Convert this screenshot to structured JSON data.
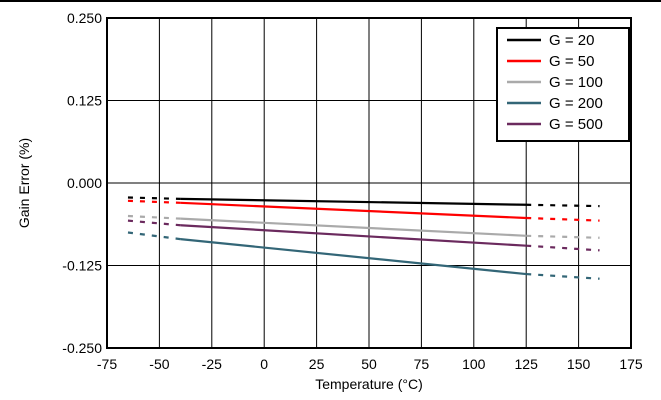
{
  "chart_data": {
    "type": "line",
    "title": "",
    "xlabel": "Temperature (°C)",
    "ylabel": "Gain Error (%)",
    "xlim": [
      -75,
      175
    ],
    "ylim": [
      -0.25,
      0.25
    ],
    "x_ticks": [
      "-75",
      "-50",
      "-25",
      "0",
      "25",
      "50",
      "75",
      "100",
      "125",
      "150",
      "175"
    ],
    "y_ticks": [
      "0.250",
      "0.125",
      "0.000",
      "-0.125",
      "-0.250"
    ],
    "grid": true,
    "legend_position": "top-right",
    "solid_range": [
      -40,
      125
    ],
    "dotted_ranges": [
      [
        -65,
        -40
      ],
      [
        125,
        160
      ]
    ],
    "series": [
      {
        "name": "G = 20",
        "color": "#000000",
        "x": [
          -65,
          -40,
          125,
          160
        ],
        "y": [
          -0.022,
          -0.024,
          -0.033,
          -0.035
        ]
      },
      {
        "name": "G = 50",
        "color": "#ff0000",
        "x": [
          -65,
          -40,
          125,
          160
        ],
        "y": [
          -0.027,
          -0.03,
          -0.053,
          -0.057
        ]
      },
      {
        "name": "G = 100",
        "color": "#aaaaaa",
        "x": [
          -65,
          -40,
          125,
          160
        ],
        "y": [
          -0.05,
          -0.054,
          -0.08,
          -0.083
        ]
      },
      {
        "name": "G = 200",
        "color": "#336677",
        "x": [
          -65,
          -40,
          125,
          160
        ],
        "y": [
          -0.075,
          -0.085,
          -0.138,
          -0.145
        ]
      },
      {
        "name": "G = 500",
        "color": "#6b2a5e",
        "x": [
          -65,
          -40,
          125,
          160
        ],
        "y": [
          -0.057,
          -0.064,
          -0.095,
          -0.102
        ]
      }
    ]
  }
}
